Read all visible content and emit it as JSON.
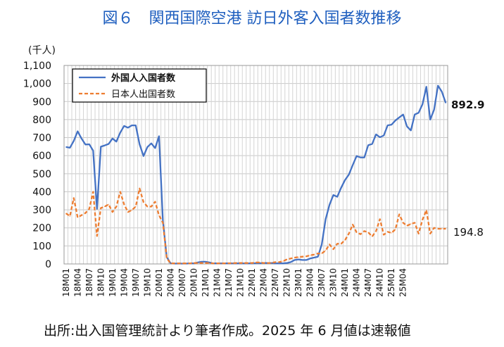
{
  "title": "図６　関西国際空港 訪日外客入国者数推移",
  "footer": "出所:出入国管理統計より筆者作成。2025 年 6 月値は速報値",
  "chart_data": {
    "type": "line",
    "ylabel": "(千人)",
    "ylim": [
      0,
      1100
    ],
    "yticks": [
      0,
      100,
      200,
      300,
      400,
      500,
      600,
      700,
      800,
      900,
      1000,
      1100
    ],
    "ytick_labels": [
      "0",
      "100",
      "200",
      "300",
      "400",
      "500",
      "600",
      "700",
      "800",
      "900",
      "1,000",
      "1,100"
    ],
    "grid": true,
    "legend_position": "top-left",
    "x_tick_labels": [
      "18M01",
      "18M04",
      "18M07",
      "18M10",
      "19M01",
      "19M04",
      "19M07",
      "19M10",
      "20M01",
      "20M04",
      "20M07",
      "20M10",
      "21M01",
      "21M04",
      "21M07",
      "21M10",
      "22M01",
      "22M04",
      "22M07",
      "22M10",
      "23M01",
      "23M04",
      "23M07",
      "23M10",
      "24M01",
      "24M04",
      "24M07",
      "24M10",
      "25M01",
      "25M04"
    ],
    "series": [
      {
        "name": "外国人入国者数",
        "color": "#4472c4",
        "style": "solid",
        "end_label": "892.9",
        "values": [
          648,
          644,
          682,
          735,
          695,
          662,
          663,
          628,
          305,
          650,
          657,
          665,
          695,
          678,
          728,
          765,
          755,
          768,
          768,
          663,
          598,
          648,
          668,
          642,
          708,
          240,
          38,
          3,
          2,
          2,
          2,
          2,
          3,
          3,
          8,
          12,
          12,
          8,
          3,
          3,
          3,
          3,
          3,
          3,
          3,
          3,
          3,
          3,
          3,
          4,
          4,
          5,
          5,
          5,
          3,
          3,
          3,
          5,
          10,
          22,
          25,
          22,
          22,
          30,
          35,
          40,
          108,
          248,
          328,
          382,
          372,
          422,
          465,
          495,
          548,
          598,
          590,
          590,
          658,
          665,
          718,
          702,
          712,
          768,
          772,
          795,
          812,
          828,
          762,
          740,
          828,
          838,
          885,
          982,
          800,
          855,
          988,
          955,
          893
        ]
      },
      {
        "name": "日本人出国者数",
        "color": "#ed7d31",
        "style": "dashed",
        "end_label": "194.8",
        "values": [
          280,
          265,
          365,
          258,
          270,
          282,
          305,
          400,
          155,
          310,
          318,
          330,
          288,
          318,
          400,
          330,
          288,
          298,
          318,
          418,
          342,
          318,
          318,
          345,
          270,
          228,
          32,
          3,
          3,
          3,
          3,
          3,
          3,
          5,
          5,
          5,
          5,
          5,
          3,
          3,
          3,
          3,
          4,
          4,
          5,
          5,
          5,
          5,
          5,
          8,
          8,
          5,
          5,
          5,
          10,
          10,
          15,
          25,
          30,
          35,
          38,
          40,
          42,
          48,
          52,
          58,
          58,
          75,
          108,
          82,
          112,
          112,
          132,
          168,
          218,
          175,
          165,
          182,
          175,
          152,
          182,
          248,
          162,
          178,
          172,
          192,
          275,
          228,
          212,
          222,
          228,
          168,
          245,
          298,
          168,
          200,
          195,
          195,
          195
        ]
      }
    ]
  }
}
